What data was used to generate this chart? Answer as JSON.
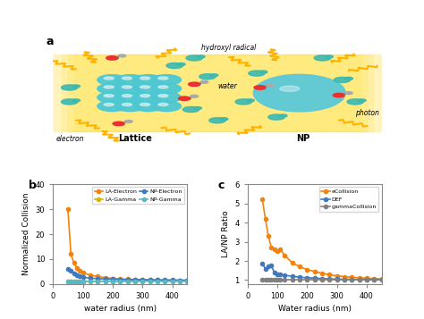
{
  "panel_b": {
    "x": [
      50,
      60,
      70,
      80,
      90,
      100,
      125,
      150,
      175,
      200,
      225,
      250,
      275,
      300,
      325,
      350,
      375,
      400,
      425,
      450
    ],
    "LA_Electron": [
      30.0,
      12.0,
      8.5,
      6.5,
      5.2,
      4.5,
      3.5,
      3.0,
      2.5,
      2.2,
      2.0,
      1.9,
      1.8,
      1.7,
      1.6,
      1.6,
      1.5,
      1.5,
      1.4,
      1.4
    ],
    "LA_Gamma": [
      1.1,
      1.1,
      1.1,
      1.1,
      1.1,
      1.1,
      1.1,
      1.1,
      1.15,
      1.15,
      1.15,
      1.15,
      1.15,
      1.2,
      1.2,
      1.2,
      1.2,
      1.2,
      1.2,
      1.2
    ],
    "NP_Electron": [
      6.0,
      5.2,
      4.2,
      3.5,
      3.0,
      2.7,
      2.3,
      2.1,
      2.0,
      1.9,
      1.8,
      1.75,
      1.7,
      1.65,
      1.6,
      1.6,
      1.55,
      1.55,
      1.5,
      1.5
    ],
    "NP_Gamma": [
      1.0,
      1.0,
      1.0,
      1.0,
      1.0,
      1.0,
      1.0,
      1.0,
      1.05,
      1.05,
      1.05,
      1.05,
      1.05,
      1.1,
      1.1,
      1.1,
      1.1,
      1.1,
      1.1,
      1.1
    ],
    "ylabel": "Normalized Collision",
    "xlabel": "water radius (nm)",
    "ylim": [
      0,
      40.0
    ],
    "yticks": [
      0,
      10.0,
      20.0,
      30.0,
      40.0
    ],
    "xlim": [
      0,
      450
    ],
    "xticks": [
      0,
      100,
      200,
      300,
      400
    ],
    "label": "b"
  },
  "panel_c": {
    "x": [
      50,
      60,
      70,
      80,
      90,
      100,
      110,
      125,
      150,
      175,
      200,
      225,
      250,
      275,
      300,
      325,
      350,
      375,
      400,
      425,
      450
    ],
    "eCollision": [
      5.2,
      4.2,
      3.3,
      2.7,
      2.6,
      2.5,
      2.6,
      2.3,
      1.9,
      1.7,
      1.55,
      1.45,
      1.35,
      1.28,
      1.22,
      1.18,
      1.14,
      1.12,
      1.1,
      1.08,
      1.06
    ],
    "DEF": [
      1.85,
      1.6,
      1.7,
      1.75,
      1.4,
      1.3,
      1.3,
      1.25,
      1.2,
      1.15,
      1.12,
      1.1,
      1.08,
      1.06,
      1.05,
      1.04,
      1.03,
      1.02,
      1.02,
      1.01,
      1.01
    ],
    "gammaCollision": [
      1.0,
      1.0,
      1.0,
      1.0,
      1.0,
      1.0,
      1.0,
      1.0,
      1.0,
      1.0,
      1.0,
      1.0,
      1.0,
      1.0,
      1.0,
      1.0,
      1.0,
      1.0,
      1.0,
      1.0,
      1.0
    ],
    "ylabel": "LA/NP Ratio",
    "xlabel": "Water radius (nm)",
    "ylim": [
      0.8,
      6.0
    ],
    "yticks": [
      1.0,
      2.0,
      3.0,
      4.0,
      5.0,
      6.0
    ],
    "xlim": [
      0,
      450
    ],
    "xticks": [
      0,
      100,
      200,
      300,
      400
    ],
    "label": "c"
  },
  "colors": {
    "LA_Electron": "#f5820a",
    "LA_Gamma": "#d4b800",
    "NP_Electron": "#3d7abf",
    "NP_Gamma": "#5ab8c4",
    "eCollision": "#f5820a",
    "DEF": "#3d7abf",
    "gammaCollision": "#808080"
  },
  "marker": "o",
  "markersize": 3,
  "linewidth": 1.2
}
